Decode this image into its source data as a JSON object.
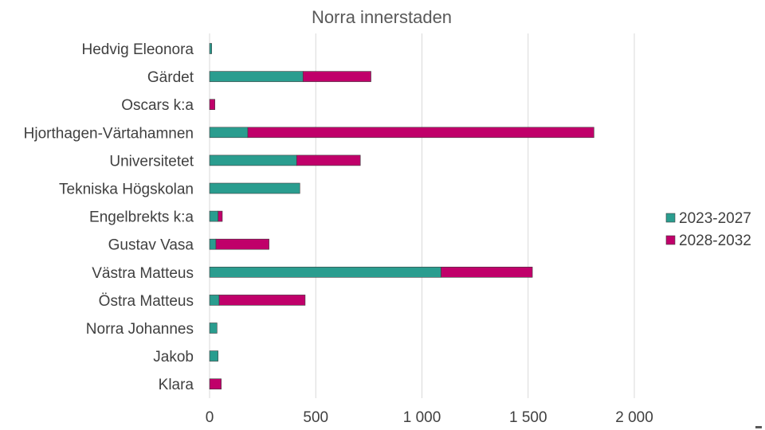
{
  "chart_data": {
    "type": "bar",
    "orientation": "horizontal",
    "stacked": true,
    "title": "Norra innerstaden",
    "xlabel": "",
    "ylabel": "",
    "xlim": [
      0,
      2000
    ],
    "x_ticks": [
      0,
      500,
      1000,
      1500,
      2000
    ],
    "x_tick_labels": [
      "0",
      "500",
      "1 000",
      "1 500",
      "2 000"
    ],
    "grid": true,
    "legend_position": "right",
    "categories": [
      "Hedvig Eleonora",
      "Gärdet",
      "Oscars k:a",
      "Hjorthagen-Värtahamnen",
      "Universitetet",
      "Tekniska Högskolan",
      "Engelbrekts k:a",
      "Gustav Vasa",
      "Västra Matteus",
      "Östra Matteus",
      "Norra Johannes",
      "Jakob",
      "Klara"
    ],
    "series": [
      {
        "name": "2023-2027",
        "color": "#2a9d8f",
        "values": [
          10,
          440,
          0,
          180,
          410,
          425,
          40,
          30,
          1090,
          45,
          35,
          40,
          0
        ]
      },
      {
        "name": "2028-2032",
        "color": "#c0006a",
        "values": [
          0,
          320,
          25,
          1630,
          300,
          0,
          20,
          250,
          430,
          405,
          0,
          0,
          55
        ]
      }
    ]
  }
}
